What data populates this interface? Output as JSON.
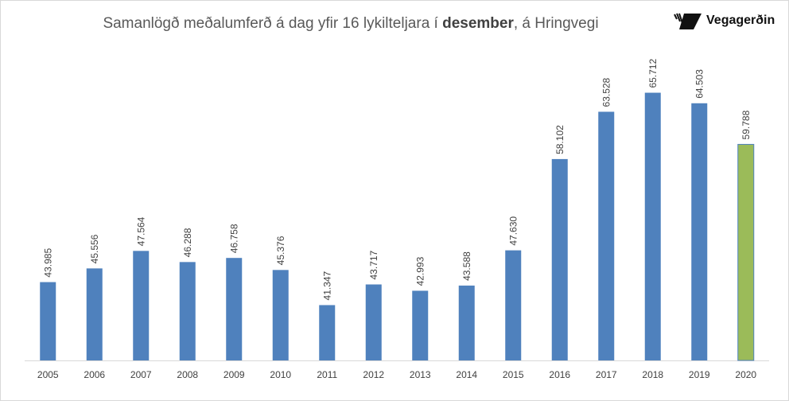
{
  "chart_data": {
    "type": "bar",
    "title_prefix": "Samanlögð meðalumferð á dag yfir 16 lykilteljara í ",
    "title_bold": "desember",
    "title_suffix": ", á Hringvegi",
    "categories": [
      "2005",
      "2006",
      "2007",
      "2008",
      "2009",
      "2010",
      "2011",
      "2012",
      "2013",
      "2014",
      "2015",
      "2016",
      "2017",
      "2018",
      "2019",
      "2020"
    ],
    "values": [
      43985,
      45556,
      47564,
      46288,
      46758,
      45376,
      41347,
      43717,
      42993,
      43588,
      47630,
      58102,
      63528,
      65712,
      64503,
      59788
    ],
    "data_labels": [
      "43.985",
      "45.556",
      "47.564",
      "46.288",
      "46.758",
      "45.376",
      "41.347",
      "43.717",
      "42.993",
      "43.588",
      "47.630",
      "58.102",
      "63.528",
      "65.712",
      "64.503",
      "59.788"
    ],
    "ylim": [
      35000,
      68500
    ],
    "y_axis_visible": false,
    "grid": false,
    "colors": {
      "default": "#4F81BD",
      "highlight": "#9BBB59",
      "highlight_border": "#4F81BD"
    },
    "highlight_category": "2020"
  },
  "logo": {
    "text": "Vegagerðin",
    "icon": "vegagerdin-stripes-logo"
  }
}
